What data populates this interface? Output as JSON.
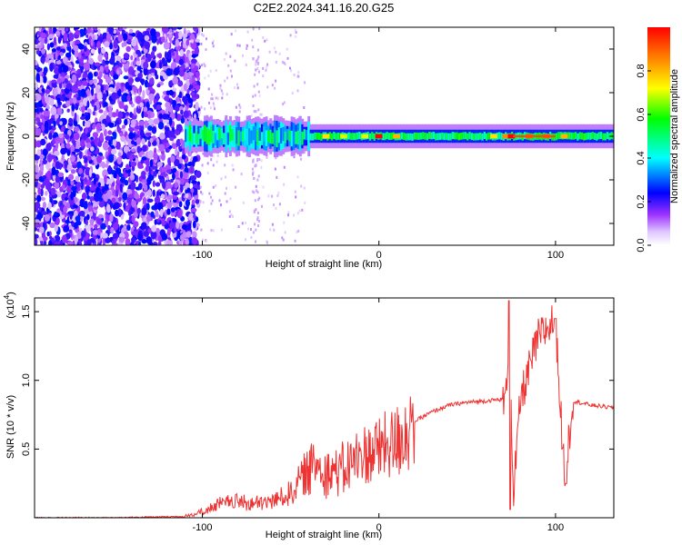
{
  "title": "C2E2.2024.341.16.20.G25",
  "chart_data": [
    {
      "type": "heatmap",
      "title": "C2E2.2024.341.16.20.G25",
      "xlabel": "Height of straight line (km)",
      "ylabel": "Frequency (Hz)",
      "xlim": [
        -195,
        133
      ],
      "ylim": [
        -50,
        50
      ],
      "x_ticks": [
        -100,
        0,
        100
      ],
      "y_ticks": [
        -40,
        -20,
        0,
        20,
        40
      ],
      "colorbar": {
        "label": "Normalized spectral amplitude",
        "range": [
          0.0,
          1.0
        ],
        "ticks": [
          "0.0",
          "0.2",
          "0.4",
          "0.6",
          "0.8"
        ],
        "colormap": [
          "#ffffff",
          "#d9c2f5",
          "#7a00ff",
          "#0000ff",
          "#00ffff",
          "#00ff00",
          "#ffff00",
          "#ff8000",
          "#ff0000"
        ]
      },
      "features": [
        {
          "name": "noise region",
          "x_range": [
            -195,
            -102
          ],
          "freq_range": [
            -50,
            50
          ],
          "amplitude": 0.2
        },
        {
          "name": "onset band",
          "x_range": [
            -110,
            -40
          ],
          "center_freq": 0,
          "half_width_hz": 6,
          "amplitude": 0.4
        },
        {
          "name": "carrier band",
          "x_range": [
            -40,
            133
          ],
          "center_freq": 0,
          "half_width_hz": 3,
          "amplitude": 0.55
        },
        {
          "name": "peak near 0 km",
          "x": 0,
          "center_freq": 0,
          "amplitude": 1.0
        },
        {
          "name": "peak near 75 km",
          "x": 75,
          "center_freq": 0,
          "amplitude": 1.0
        }
      ]
    },
    {
      "type": "line",
      "xlabel": "Height of straight line (km)",
      "ylabel": "SNR (10 * v/v)",
      "y_scale_label": "(x10",
      "y_scale_exponent": "4",
      "xlim": [
        -195,
        133
      ],
      "ylim": [
        0,
        1.6
      ],
      "x_ticks": [
        -100,
        0,
        100
      ],
      "y_ticks": [
        "0.5",
        "1.0",
        "1.5"
      ],
      "series": [
        {
          "name": "SNR",
          "color": "#ee3333",
          "x": [
            -195,
            -150,
            -110,
            -100,
            -90,
            -80,
            -70,
            -60,
            -50,
            -40,
            -35,
            -30,
            -20,
            -10,
            0,
            10,
            20,
            30,
            40,
            50,
            60,
            68,
            72,
            74,
            76,
            80,
            90,
            100,
            105,
            110,
            120,
            133
          ],
          "y": [
            0.0,
            0.0,
            0.01,
            0.04,
            0.1,
            0.12,
            0.1,
            0.12,
            0.18,
            0.35,
            0.4,
            0.35,
            0.35,
            0.45,
            0.5,
            0.55,
            0.7,
            0.77,
            0.82,
            0.84,
            0.85,
            0.86,
            0.86,
            1.58,
            0.1,
            0.85,
            1.3,
            1.45,
            0.3,
            0.85,
            0.82,
            0.8
          ]
        }
      ]
    }
  ]
}
